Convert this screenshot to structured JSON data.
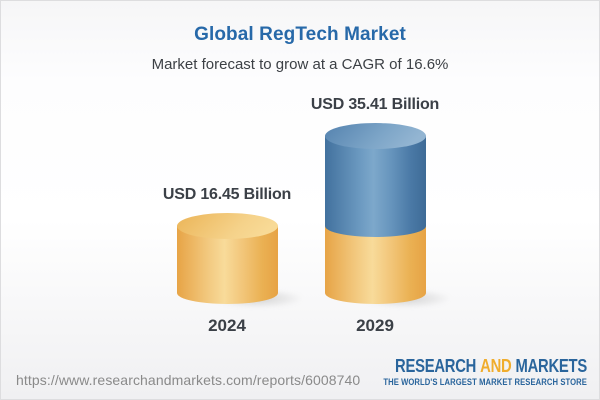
{
  "chart_data": {
    "type": "bar",
    "bar_style": "3d-cylinder",
    "title": "Global RegTech Market",
    "subtitle": "Market forecast to grow at a CAGR of 16.6%",
    "cagr_percent": 16.6,
    "unit": "USD Billion",
    "categories": [
      "2024",
      "2029"
    ],
    "values": [
      16.45,
      35.41
    ],
    "value_labels": [
      "USD 16.45 Billion",
      "USD 35.41 Billion"
    ],
    "stacking_note": "2029 cylinder is stacked: gold base segment equal in height to the 2024 value, blue growth segment above it",
    "segment_colors": {
      "base_gold": "#f0bc66",
      "growth_blue": "#4f81af"
    },
    "legend_position": "none",
    "grid": false,
    "axes_visible": false,
    "ylim": [
      0,
      38
    ]
  },
  "footer": {
    "url": "https://www.researchandmarkets.com/reports/6008740",
    "logo": {
      "word1": "RESEARCH",
      "word2": "AND",
      "word3": "MARKETS",
      "tagline": "THE WORLD'S LARGEST MARKET RESEARCH STORE",
      "blue": "#2a659c",
      "gold": "#f0ad2d"
    }
  },
  "colors": {
    "title_blue": "#2769a9",
    "text_dark": "#3b4047",
    "url_gray": "#8a8a8a"
  }
}
